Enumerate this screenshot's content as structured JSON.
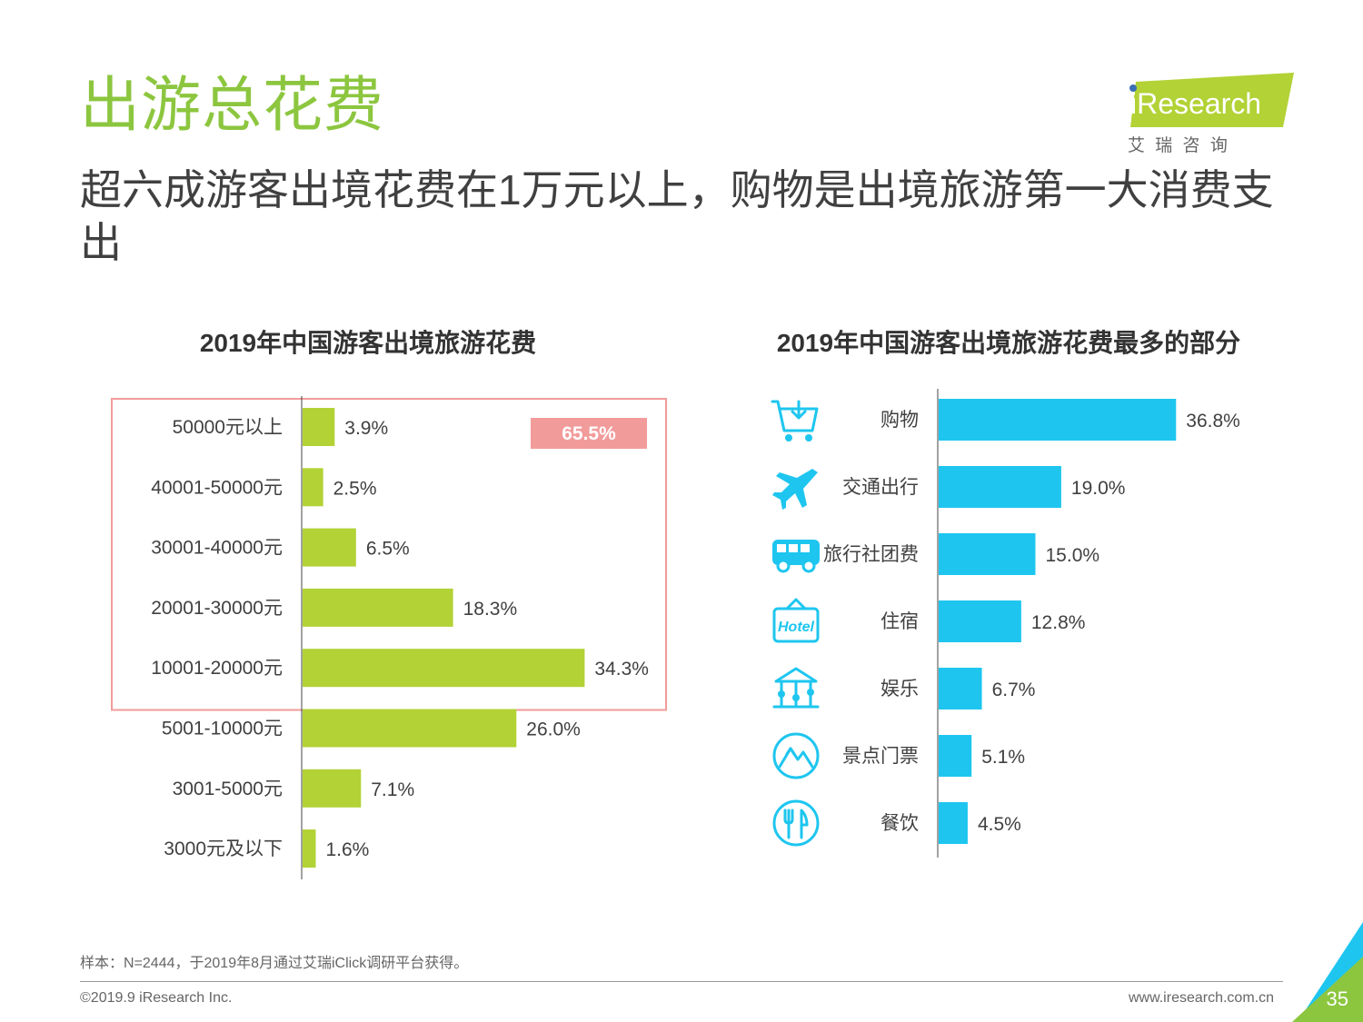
{
  "header": {
    "title": "出游总花费",
    "subtitle": "超六成游客出境花费在1万元以上，购物是出境旅游第一大消费支出"
  },
  "logo": {
    "brand": "iResearch",
    "cn": "艾 瑞 咨 询"
  },
  "colors": {
    "green_bar": "#b2d235",
    "blue_bar": "#1ec6ef",
    "highlight": "#f29b9b",
    "title_green": "#8cc63f"
  },
  "chart_data": [
    {
      "type": "bar",
      "orientation": "horizontal",
      "title": "2019年中国游客出境旅游花费",
      "categories": [
        "50000元以上",
        "40001-50000元",
        "30001-40000元",
        "20001-30000元",
        "10001-20000元",
        "5001-10000元",
        "3001-5000元",
        "3000元及以下"
      ],
      "values": [
        3.9,
        2.5,
        6.5,
        18.3,
        34.3,
        26.0,
        7.1,
        1.6
      ],
      "labels": [
        "3.9%",
        "2.5%",
        "6.5%",
        "18.3%",
        "34.3%",
        "26.0%",
        "7.1%",
        "1.6%"
      ],
      "annotation": "65.5%",
      "highlighted_categories": [
        "50000元以上",
        "40001-50000元",
        "30001-40000元",
        "20001-30000元",
        "10001-20000元"
      ]
    },
    {
      "type": "bar",
      "orientation": "horizontal",
      "title": "2019年中国游客出境旅游花费最多的部分",
      "categories": [
        "购物",
        "交通出行",
        "旅行社团费",
        "住宿",
        "娱乐",
        "景点门票",
        "餐饮"
      ],
      "values": [
        36.8,
        19.0,
        15.0,
        12.8,
        6.7,
        5.1,
        4.5
      ],
      "labels": [
        "36.8%",
        "19.0%",
        "15.0%",
        "12.8%",
        "6.7%",
        "5.1%",
        "4.5%"
      ],
      "icons": [
        "shopping-cart-icon",
        "airplane-icon",
        "bus-icon",
        "hotel-icon",
        "carousel-icon",
        "mountain-icon",
        "dining-icon"
      ],
      "hotel_icon_text": "Hotel"
    }
  ],
  "footer": {
    "note": "样本：N=2444，于2019年8月通过艾瑞iClick调研平台获得。",
    "copyright": "©2019.9 iResearch Inc.",
    "website": "www.iresearch.com.cn",
    "page_number": "35"
  }
}
